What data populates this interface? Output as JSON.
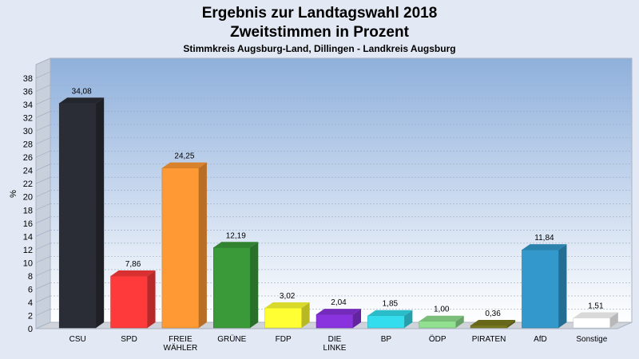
{
  "chart_data": {
    "type": "bar",
    "title_line1": "Ergebnis zur Landtagswahl 2018",
    "title_line2": "Zweitstimmen in Prozent",
    "subtitle": "Stimmkreis Augsburg-Land, Dillingen - Landkreis Augsburg",
    "ylabel": "%",
    "ylim": [
      0,
      38
    ],
    "ytick_step": 2,
    "grid": true,
    "categories": [
      [
        "CSU"
      ],
      [
        "SPD"
      ],
      [
        "FREIE",
        "WÄHLER"
      ],
      [
        "GRÜNE"
      ],
      [
        "FDP"
      ],
      [
        "DIE",
        "LINKE"
      ],
      [
        "BP"
      ],
      [
        "ÖDP"
      ],
      [
        "PIRATEN"
      ],
      [
        "AfD"
      ],
      [
        "Sonstige"
      ]
    ],
    "values": [
      34.08,
      7.86,
      24.25,
      12.19,
      3.02,
      2.04,
      1.85,
      1.0,
      0.36,
      11.84,
      1.51
    ],
    "value_labels": [
      "34,08",
      "7,86",
      "24,25",
      "12,19",
      "3,02",
      "2,04",
      "1,85",
      "1,00",
      "0,36",
      "11,84",
      "1,51"
    ],
    "colors": [
      "#2a2d35",
      "#ff3a3a",
      "#ff9933",
      "#3a9a3a",
      "#ffff33",
      "#8833dd",
      "#33ddee",
      "#90e090",
      "#7a7a20",
      "#3399cc",
      "#ffffff"
    ]
  }
}
